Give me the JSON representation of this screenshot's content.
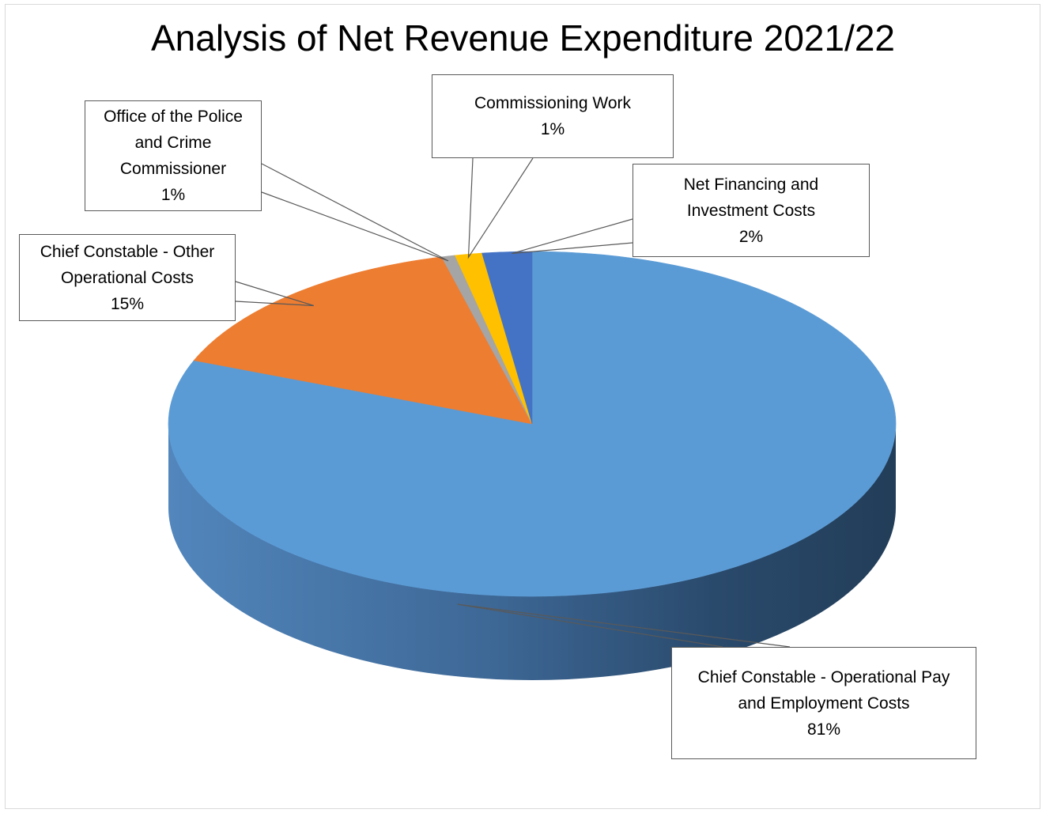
{
  "chart_data": {
    "type": "pie",
    "style": "3d",
    "title": "Analysis of Net Revenue Expenditure 2021/22",
    "slices": [
      {
        "label": "Chief Constable - Operational Pay and Employment Costs",
        "label_lines": [
          "Chief Constable - Operational Pay",
          "and Employment Costs"
        ],
        "percent_label": "81%",
        "value": 81,
        "color": "#5b9bd5"
      },
      {
        "label": "Chief Constable - Other Operational Costs",
        "label_lines": [
          "Chief Constable - Other",
          "Operational Costs"
        ],
        "percent_label": "15%",
        "value": 15,
        "color": "#ed7d31"
      },
      {
        "label": "Office of the Police and Crime Commissioner",
        "label_lines": [
          "Office of the Police",
          "and Crime",
          "Commissioner"
        ],
        "percent_label": "1%",
        "value": 0.6,
        "color": "#a5a5a5"
      },
      {
        "label": "Commissioning Work",
        "label_lines": [
          "Commissioning Work"
        ],
        "percent_label": "1%",
        "value": 1.2,
        "color": "#ffc000"
      },
      {
        "label": "Net Financing and Investment Costs",
        "label_lines": [
          "Net Financing and",
          "Investment Costs"
        ],
        "percent_label": "2%",
        "value": 2.2,
        "color": "#4472c4"
      }
    ],
    "legend": "none",
    "data_labels": "callouts"
  }
}
